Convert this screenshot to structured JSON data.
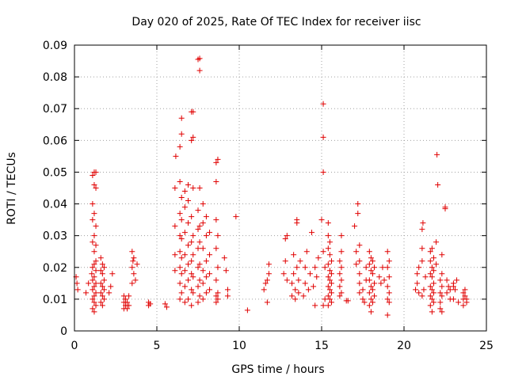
{
  "chart_data": {
    "type": "scatter",
    "title": "Day 020 of 2025, Rate Of TEC Index for receiver iisc",
    "xlabel": "GPS time / hours",
    "ylabel": "ROTI / TECUs",
    "xlim": [
      0,
      24
    ],
    "ylim": [
      0,
      0.09
    ],
    "xticks": [
      "0",
      "5",
      "10",
      "15",
      "20",
      "25"
    ],
    "yticks": [
      "0",
      "0.01",
      "0.02",
      "0.03",
      "0.04",
      "0.05",
      "0.06",
      "0.07",
      "0.08",
      "0.09"
    ],
    "grid": true,
    "marker": "plus",
    "color": "#e00000",
    "points": [
      [
        0.1,
        0.017
      ],
      [
        0.15,
        0.015
      ],
      [
        0.2,
        0.013
      ],
      [
        0.7,
        0.012
      ],
      [
        0.85,
        0.015
      ],
      [
        1.05,
        0.018
      ],
      [
        1.1,
        0.007
      ],
      [
        1.1,
        0.01
      ],
      [
        1.1,
        0.013
      ],
      [
        1.1,
        0.016
      ],
      [
        1.1,
        0.02
      ],
      [
        1.1,
        0.028
      ],
      [
        1.1,
        0.035
      ],
      [
        1.1,
        0.04
      ],
      [
        1.1,
        0.049
      ],
      [
        1.2,
        0.006
      ],
      [
        1.2,
        0.009
      ],
      [
        1.2,
        0.011
      ],
      [
        1.2,
        0.014
      ],
      [
        1.2,
        0.017
      ],
      [
        1.2,
        0.021
      ],
      [
        1.2,
        0.025
      ],
      [
        1.2,
        0.03
      ],
      [
        1.2,
        0.037
      ],
      [
        1.2,
        0.046
      ],
      [
        1.2,
        0.05
      ],
      [
        1.3,
        0.008
      ],
      [
        1.3,
        0.012
      ],
      [
        1.3,
        0.015
      ],
      [
        1.3,
        0.019
      ],
      [
        1.3,
        0.022
      ],
      [
        1.3,
        0.027
      ],
      [
        1.3,
        0.033
      ],
      [
        1.3,
        0.045
      ],
      [
        1.3,
        0.05
      ],
      [
        1.6,
        0.009
      ],
      [
        1.6,
        0.012
      ],
      [
        1.6,
        0.015
      ],
      [
        1.6,
        0.019
      ],
      [
        1.6,
        0.023
      ],
      [
        1.7,
        0.008
      ],
      [
        1.7,
        0.011
      ],
      [
        1.7,
        0.014
      ],
      [
        1.7,
        0.018
      ],
      [
        1.7,
        0.021
      ],
      [
        1.8,
        0.01
      ],
      [
        1.8,
        0.013
      ],
      [
        1.8,
        0.016
      ],
      [
        1.8,
        0.02
      ],
      [
        2.1,
        0.012
      ],
      [
        2.2,
        0.014
      ],
      [
        2.3,
        0.018
      ],
      [
        3.0,
        0.007
      ],
      [
        3.0,
        0.009
      ],
      [
        3.0,
        0.011
      ],
      [
        3.1,
        0.008
      ],
      [
        3.1,
        0.01
      ],
      [
        3.2,
        0.007
      ],
      [
        3.2,
        0.009
      ],
      [
        3.3,
        0.008
      ],
      [
        3.3,
        0.011
      ],
      [
        3.5,
        0.015
      ],
      [
        3.5,
        0.02
      ],
      [
        3.5,
        0.025
      ],
      [
        3.55,
        0.022
      ],
      [
        3.6,
        0.018
      ],
      [
        3.6,
        0.023
      ],
      [
        3.7,
        0.016
      ],
      [
        3.8,
        0.021
      ],
      [
        4.5,
        0.008
      ],
      [
        4.5,
        0.009
      ],
      [
        4.6,
        0.0085
      ],
      [
        5.5,
        0.0085
      ],
      [
        5.6,
        0.0075
      ],
      [
        6.1,
        0.019
      ],
      [
        6.1,
        0.024
      ],
      [
        6.1,
        0.033
      ],
      [
        6.1,
        0.045
      ],
      [
        6.15,
        0.055
      ],
      [
        6.4,
        0.01
      ],
      [
        6.4,
        0.015
      ],
      [
        6.4,
        0.02
      ],
      [
        6.4,
        0.025
      ],
      [
        6.4,
        0.03
      ],
      [
        6.4,
        0.037
      ],
      [
        6.4,
        0.047
      ],
      [
        6.4,
        0.058
      ],
      [
        6.5,
        0.012
      ],
      [
        6.5,
        0.018
      ],
      [
        6.5,
        0.023
      ],
      [
        6.5,
        0.029
      ],
      [
        6.5,
        0.035
      ],
      [
        6.5,
        0.042
      ],
      [
        6.5,
        0.062
      ],
      [
        6.5,
        0.067
      ],
      [
        6.7,
        0.009
      ],
      [
        6.7,
        0.014
      ],
      [
        6.7,
        0.019
      ],
      [
        6.7,
        0.024
      ],
      [
        6.7,
        0.031
      ],
      [
        6.7,
        0.039
      ],
      [
        6.7,
        0.044
      ],
      [
        6.9,
        0.01
      ],
      [
        6.9,
        0.016
      ],
      [
        6.9,
        0.021
      ],
      [
        6.9,
        0.027
      ],
      [
        6.9,
        0.034
      ],
      [
        6.9,
        0.041
      ],
      [
        6.9,
        0.046
      ],
      [
        7.1,
        0.008
      ],
      [
        7.1,
        0.013
      ],
      [
        7.1,
        0.018
      ],
      [
        7.1,
        0.022
      ],
      [
        7.1,
        0.028
      ],
      [
        7.1,
        0.036
      ],
      [
        7.1,
        0.06
      ],
      [
        7.1,
        0.069
      ],
      [
        7.2,
        0.012
      ],
      [
        7.2,
        0.017
      ],
      [
        7.2,
        0.024
      ],
      [
        7.2,
        0.03
      ],
      [
        7.2,
        0.045
      ],
      [
        7.2,
        0.061
      ],
      [
        7.2,
        0.069
      ],
      [
        7.5,
        0.009
      ],
      [
        7.5,
        0.014
      ],
      [
        7.5,
        0.02
      ],
      [
        7.5,
        0.026
      ],
      [
        7.5,
        0.032
      ],
      [
        7.5,
        0.038
      ],
      [
        7.5,
        0.0855
      ],
      [
        7.6,
        0.011
      ],
      [
        7.6,
        0.016
      ],
      [
        7.6,
        0.021
      ],
      [
        7.6,
        0.028
      ],
      [
        7.6,
        0.033
      ],
      [
        7.6,
        0.045
      ],
      [
        7.6,
        0.082
      ],
      [
        7.6,
        0.0858
      ],
      [
        7.8,
        0.01
      ],
      [
        7.8,
        0.015
      ],
      [
        7.8,
        0.019
      ],
      [
        7.8,
        0.026
      ],
      [
        7.8,
        0.034
      ],
      [
        7.8,
        0.04
      ],
      [
        8.0,
        0.012
      ],
      [
        8.0,
        0.017
      ],
      [
        8.0,
        0.022
      ],
      [
        8.0,
        0.03
      ],
      [
        8.0,
        0.036
      ],
      [
        8.2,
        0.013
      ],
      [
        8.2,
        0.018
      ],
      [
        8.2,
        0.024
      ],
      [
        8.2,
        0.031
      ],
      [
        8.6,
        0.009
      ],
      [
        8.6,
        0.011
      ],
      [
        8.6,
        0.016
      ],
      [
        8.6,
        0.026
      ],
      [
        8.6,
        0.035
      ],
      [
        8.6,
        0.047
      ],
      [
        8.6,
        0.053
      ],
      [
        8.7,
        0.01
      ],
      [
        8.7,
        0.012
      ],
      [
        8.7,
        0.02
      ],
      [
        8.7,
        0.03
      ],
      [
        8.7,
        0.054
      ],
      [
        9.1,
        0.023
      ],
      [
        9.2,
        0.019
      ],
      [
        9.3,
        0.013
      ],
      [
        9.3,
        0.011
      ],
      [
        9.8,
        0.036
      ],
      [
        10.5,
        0.0065
      ],
      [
        11.5,
        0.013
      ],
      [
        11.6,
        0.015
      ],
      [
        11.7,
        0.016
      ],
      [
        11.7,
        0.009
      ],
      [
        11.8,
        0.018
      ],
      [
        11.8,
        0.021
      ],
      [
        12.7,
        0.018
      ],
      [
        12.8,
        0.022
      ],
      [
        12.8,
        0.029
      ],
      [
        12.9,
        0.03
      ],
      [
        12.9,
        0.016
      ],
      [
        13.2,
        0.011
      ],
      [
        13.2,
        0.015
      ],
      [
        13.3,
        0.018
      ],
      [
        13.3,
        0.024
      ],
      [
        13.4,
        0.01
      ],
      [
        13.4,
        0.013
      ],
      [
        13.5,
        0.02
      ],
      [
        13.5,
        0.034
      ],
      [
        13.5,
        0.035
      ],
      [
        13.6,
        0.012
      ],
      [
        13.6,
        0.016
      ],
      [
        13.7,
        0.022
      ],
      [
        13.9,
        0.011
      ],
      [
        14.0,
        0.015
      ],
      [
        14.0,
        0.02
      ],
      [
        14.1,
        0.025
      ],
      [
        14.2,
        0.013
      ],
      [
        14.3,
        0.018
      ],
      [
        14.4,
        0.031
      ],
      [
        14.5,
        0.014
      ],
      [
        14.6,
        0.008
      ],
      [
        14.6,
        0.02
      ],
      [
        14.7,
        0.017
      ],
      [
        14.8,
        0.023
      ],
      [
        15.0,
        0.035
      ],
      [
        15.1,
        0.0715
      ],
      [
        15.1,
        0.061
      ],
      [
        15.1,
        0.05
      ],
      [
        15.1,
        0.025
      ],
      [
        15.1,
        0.008
      ],
      [
        15.2,
        0.02
      ],
      [
        15.2,
        0.01
      ],
      [
        15.4,
        0.008
      ],
      [
        15.4,
        0.011
      ],
      [
        15.4,
        0.014
      ],
      [
        15.4,
        0.017
      ],
      [
        15.4,
        0.021
      ],
      [
        15.4,
        0.026
      ],
      [
        15.4,
        0.03
      ],
      [
        15.4,
        0.034
      ],
      [
        15.5,
        0.01
      ],
      [
        15.5,
        0.013
      ],
      [
        15.5,
        0.016
      ],
      [
        15.5,
        0.019
      ],
      [
        15.5,
        0.024
      ],
      [
        15.5,
        0.028
      ],
      [
        15.6,
        0.009
      ],
      [
        15.6,
        0.012
      ],
      [
        15.6,
        0.015
      ],
      [
        15.6,
        0.018
      ],
      [
        15.6,
        0.022
      ],
      [
        16.1,
        0.011
      ],
      [
        16.1,
        0.014
      ],
      [
        16.1,
        0.018
      ],
      [
        16.1,
        0.022
      ],
      [
        16.2,
        0.012
      ],
      [
        16.2,
        0.016
      ],
      [
        16.2,
        0.02
      ],
      [
        16.2,
        0.025
      ],
      [
        16.2,
        0.03
      ],
      [
        16.5,
        0.0095
      ],
      [
        16.6,
        0.0095
      ],
      [
        17.0,
        0.033
      ],
      [
        17.1,
        0.025
      ],
      [
        17.1,
        0.021
      ],
      [
        17.2,
        0.037
      ],
      [
        17.2,
        0.04
      ],
      [
        17.3,
        0.012
      ],
      [
        17.3,
        0.015
      ],
      [
        17.3,
        0.018
      ],
      [
        17.3,
        0.022
      ],
      [
        17.3,
        0.027
      ],
      [
        17.5,
        0.01
      ],
      [
        17.5,
        0.013
      ],
      [
        17.6,
        0.009
      ],
      [
        17.7,
        0.016
      ],
      [
        17.7,
        0.02
      ],
      [
        17.9,
        0.008
      ],
      [
        17.9,
        0.012
      ],
      [
        17.9,
        0.016
      ],
      [
        17.9,
        0.021
      ],
      [
        17.9,
        0.025
      ],
      [
        18.0,
        0.006
      ],
      [
        18.0,
        0.01
      ],
      [
        18.0,
        0.014
      ],
      [
        18.0,
        0.019
      ],
      [
        18.0,
        0.023
      ],
      [
        18.1,
        0.009
      ],
      [
        18.1,
        0.013
      ],
      [
        18.1,
        0.018
      ],
      [
        18.1,
        0.022
      ],
      [
        18.2,
        0.011
      ],
      [
        18.2,
        0.015
      ],
      [
        18.2,
        0.02
      ],
      [
        18.5,
        0.017
      ],
      [
        18.6,
        0.015
      ],
      [
        18.7,
        0.02
      ],
      [
        18.8,
        0.016
      ],
      [
        19.0,
        0.005
      ],
      [
        19.0,
        0.01
      ],
      [
        19.0,
        0.014
      ],
      [
        19.0,
        0.02
      ],
      [
        19.0,
        0.025
      ],
      [
        19.1,
        0.009
      ],
      [
        19.1,
        0.012
      ],
      [
        19.1,
        0.017
      ],
      [
        19.1,
        0.022
      ],
      [
        20.7,
        0.013
      ],
      [
        20.8,
        0.015
      ],
      [
        20.8,
        0.018
      ],
      [
        20.9,
        0.012
      ],
      [
        20.9,
        0.02
      ],
      [
        21.1,
        0.011
      ],
      [
        21.1,
        0.022
      ],
      [
        21.1,
        0.026
      ],
      [
        21.1,
        0.032
      ],
      [
        21.15,
        0.034
      ],
      [
        21.2,
        0.013
      ],
      [
        21.3,
        0.017
      ],
      [
        21.6,
        0.008
      ],
      [
        21.6,
        0.011
      ],
      [
        21.6,
        0.014
      ],
      [
        21.6,
        0.018
      ],
      [
        21.6,
        0.022
      ],
      [
        21.6,
        0.025
      ],
      [
        21.7,
        0.006
      ],
      [
        21.7,
        0.01
      ],
      [
        21.7,
        0.013
      ],
      [
        21.7,
        0.017
      ],
      [
        21.7,
        0.02
      ],
      [
        21.7,
        0.026
      ],
      [
        21.8,
        0.009
      ],
      [
        21.8,
        0.012
      ],
      [
        21.8,
        0.015
      ],
      [
        21.8,
        0.019
      ],
      [
        21.8,
        0.023
      ],
      [
        22.0,
        0.0555
      ],
      [
        22.05,
        0.046
      ],
      [
        21.95,
        0.028
      ],
      [
        21.95,
        0.021
      ],
      [
        22.2,
        0.007
      ],
      [
        22.2,
        0.009
      ],
      [
        22.2,
        0.012
      ],
      [
        22.2,
        0.016
      ],
      [
        22.3,
        0.006
      ],
      [
        22.3,
        0.011
      ],
      [
        22.3,
        0.014
      ],
      [
        22.3,
        0.018
      ],
      [
        22.3,
        0.024
      ],
      [
        22.5,
        0.039
      ],
      [
        22.5,
        0.0385
      ],
      [
        22.6,
        0.012
      ],
      [
        22.6,
        0.016
      ],
      [
        22.7,
        0.014
      ],
      [
        22.8,
        0.01
      ],
      [
        22.8,
        0.013
      ],
      [
        23.0,
        0.01
      ],
      [
        23.0,
        0.014
      ],
      [
        23.0,
        0.015
      ],
      [
        23.1,
        0.013
      ],
      [
        23.2,
        0.016
      ],
      [
        23.3,
        0.009
      ],
      [
        23.6,
        0.008
      ],
      [
        23.6,
        0.01
      ],
      [
        23.6,
        0.012
      ],
      [
        23.7,
        0.011
      ],
      [
        23.7,
        0.013
      ],
      [
        23.8,
        0.01
      ],
      [
        23.8,
        0.009
      ]
    ]
  }
}
